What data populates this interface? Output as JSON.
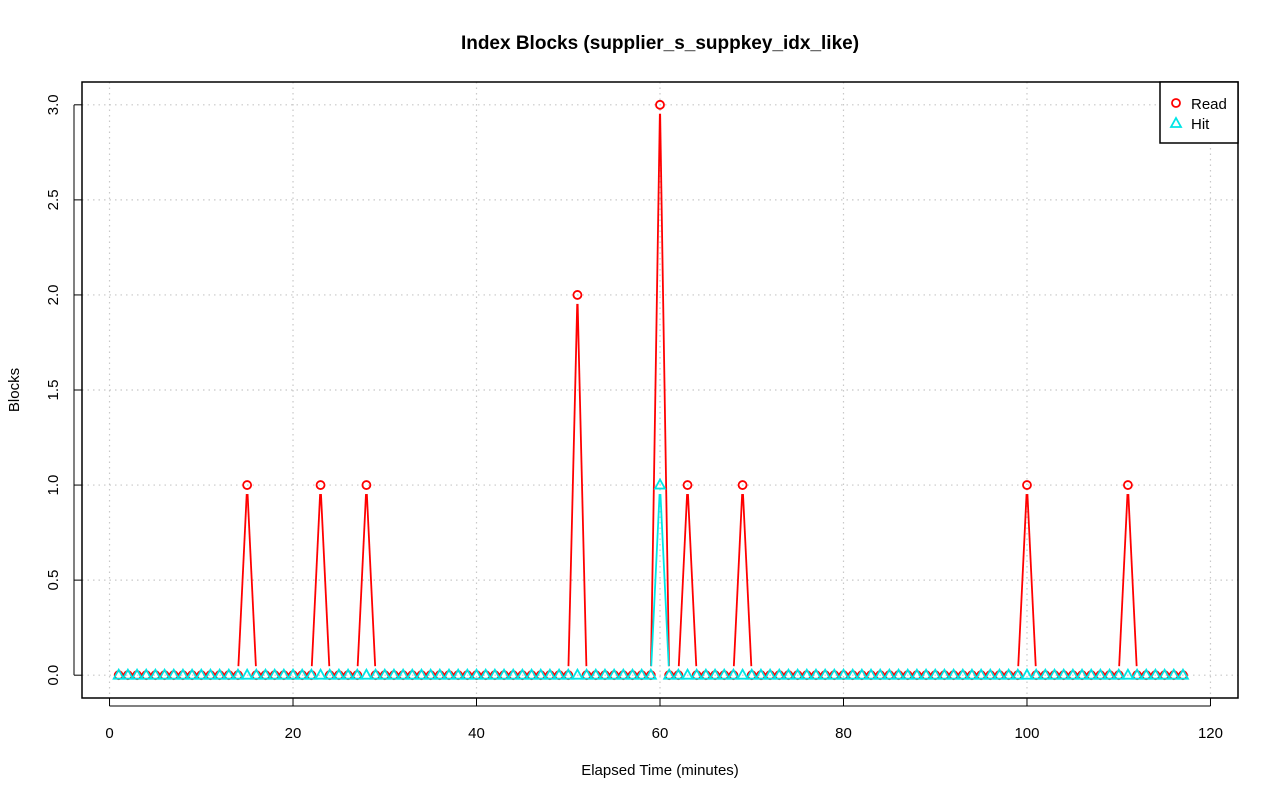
{
  "chart_data": {
    "type": "line",
    "title": "Index Blocks (supplier_s_suppkey_idx_like)",
    "xlabel": "Elapsed Time (minutes)",
    "ylabel": "Blocks",
    "xlim": [
      -3,
      123
    ],
    "ylim": [
      -0.12,
      3.12
    ],
    "x_ticks": [
      "0",
      "20",
      "40",
      "60",
      "80",
      "100",
      "120"
    ],
    "y_ticks": [
      "0.0",
      "0.5",
      "1.0",
      "1.5",
      "2.0",
      "2.5",
      "3.0"
    ],
    "grid": true,
    "legend_position": "top-right",
    "x_start": 1,
    "x_end": 117,
    "series": [
      {
        "name": "Read",
        "color": "#ff0000",
        "marker": "circle",
        "nonzero": {
          "15": 1,
          "23": 1,
          "28": 1,
          "51": 2,
          "60": 3,
          "63": 1,
          "69": 1,
          "100": 1,
          "111": 1
        }
      },
      {
        "name": "Hit",
        "color": "#00e5e5",
        "marker": "triangle",
        "nonzero": {
          "60": 1
        }
      }
    ]
  }
}
